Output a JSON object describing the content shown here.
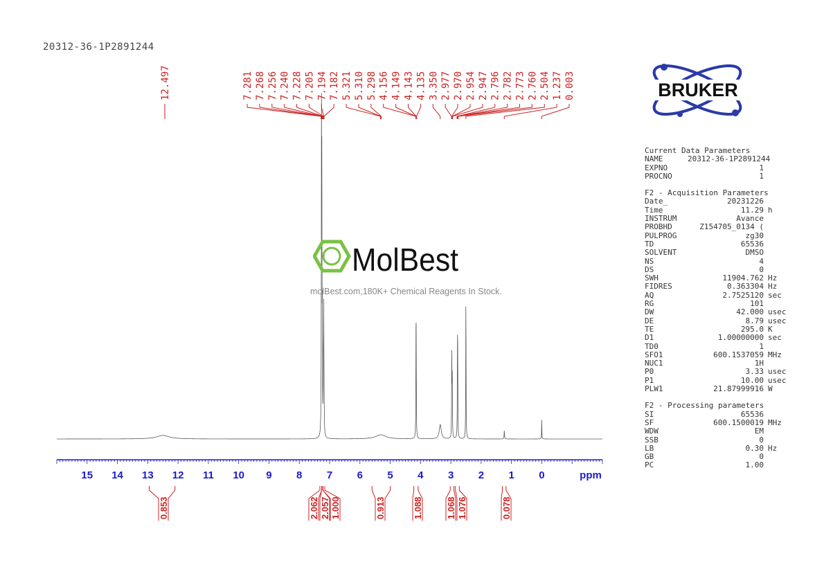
{
  "sample_name": "20312-36-1P2891244",
  "logos": {
    "bruker": "BRUKER",
    "watermark": "MolBest",
    "watermark_sub": "molBest.com,180K+ Chemical Reagents In Stock."
  },
  "chart_data": {
    "type": "line",
    "title": "",
    "xlabel": "ppm",
    "xlim": [
      16,
      -2
    ],
    "x_ticks": [
      15,
      14,
      13,
      12,
      11,
      10,
      9,
      8,
      7,
      6,
      5,
      4,
      3,
      2,
      1,
      0
    ],
    "line_color": "#555555",
    "label_color": "#cc2222",
    "axis_color": "#1a1acc",
    "peaks": [
      {
        "ppm": 12.5,
        "height": 1.2,
        "width": 0.25
      },
      {
        "ppm": 7.268,
        "height": 100,
        "width": 0.006
      },
      {
        "ppm": 7.256,
        "height": 76,
        "width": 0.006
      },
      {
        "ppm": 7.24,
        "height": 35,
        "width": 0.006
      },
      {
        "ppm": 7.205,
        "height": 20,
        "width": 0.006
      },
      {
        "ppm": 7.194,
        "height": 38,
        "width": 0.006
      },
      {
        "ppm": 7.182,
        "height": 12,
        "width": 0.006
      },
      {
        "ppm": 5.31,
        "height": 1.4,
        "width": 0.2
      },
      {
        "ppm": 4.149,
        "height": 31,
        "width": 0.006
      },
      {
        "ppm": 4.143,
        "height": 20,
        "width": 0.006
      },
      {
        "ppm": 3.35,
        "height": 4.8,
        "width": 0.04
      },
      {
        "ppm": 2.97,
        "height": 28.5,
        "width": 0.006
      },
      {
        "ppm": 2.954,
        "height": 22,
        "width": 0.006
      },
      {
        "ppm": 2.782,
        "height": 28.5,
        "width": 0.006
      },
      {
        "ppm": 2.773,
        "height": 22,
        "width": 0.006
      },
      {
        "ppm": 2.504,
        "height": 48,
        "width": 0.006
      },
      {
        "ppm": 1.237,
        "height": 2.8,
        "width": 0.008
      },
      {
        "ppm": 0.003,
        "height": 7,
        "width": 0.005
      }
    ],
    "peak_labels": [
      "12.497",
      "7.281",
      "7.268",
      "7.256",
      "7.240",
      "7.228",
      "7.205",
      "7.194",
      "7.182",
      "5.321",
      "5.310",
      "5.298",
      "4.156",
      "4.149",
      "4.143",
      "4.135",
      "3.350",
      "2.977",
      "2.970",
      "2.954",
      "2.947",
      "2.796",
      "2.782",
      "2.773",
      "2.760",
      "2.504",
      "1.237",
      "0.003"
    ],
    "integrals": [
      {
        "from": 12.95,
        "to": 12.1,
        "value": "0.853"
      },
      {
        "from": 7.32,
        "to": 7.26,
        "value": "2.062"
      },
      {
        "from": 7.26,
        "to": 7.22,
        "value": "2.057"
      },
      {
        "from": 7.22,
        "to": 7.16,
        "value": "1.000"
      },
      {
        "from": 5.6,
        "to": 5.0,
        "value": "0.913"
      },
      {
        "from": 4.22,
        "to": 4.08,
        "value": "1.088"
      },
      {
        "from": 3.02,
        "to": 2.9,
        "value": "1.068"
      },
      {
        "from": 2.85,
        "to": 2.72,
        "value": "1.076"
      },
      {
        "from": 1.3,
        "to": 1.18,
        "value": "0.078"
      }
    ]
  },
  "parameters": {
    "current": {
      "title": "Current Data Parameters",
      "rows": [
        [
          "NAME",
          "20312-36-1P2891244",
          ""
        ],
        [
          "EXPNO",
          "1",
          ""
        ],
        [
          "PROCNO",
          "1",
          ""
        ]
      ]
    },
    "acquisition": {
      "title": "F2 - Acquisition Parameters",
      "rows": [
        [
          "Date_",
          "20231226",
          ""
        ],
        [
          "Time",
          "11.29",
          "h"
        ],
        [
          "INSTRUM",
          "Avance",
          ""
        ],
        [
          "PROBHD",
          "Z154705_0134 (",
          ""
        ],
        [
          "PULPROG",
          "zg30",
          ""
        ],
        [
          "TD",
          "65536",
          ""
        ],
        [
          "SOLVENT",
          "DMSO",
          ""
        ],
        [
          "NS",
          "4",
          ""
        ],
        [
          "DS",
          "0",
          ""
        ],
        [
          "SWH",
          "11904.762",
          "Hz"
        ],
        [
          "FIDRES",
          "0.363304",
          "Hz"
        ],
        [
          "AQ",
          "2.7525120",
          "sec"
        ],
        [
          "RG",
          "101",
          ""
        ],
        [
          "DW",
          "42.000",
          "usec"
        ],
        [
          "DE",
          "8.79",
          "usec"
        ],
        [
          "TE",
          "295.0",
          "K"
        ],
        [
          "D1",
          "1.00000000",
          "sec"
        ],
        [
          "TD0",
          "1",
          ""
        ],
        [
          "SFO1",
          "600.1537059",
          "MHz"
        ],
        [
          "NUC1",
          "1H",
          ""
        ],
        [
          "P0",
          "3.33",
          "usec"
        ],
        [
          "P1",
          "10.00",
          "usec"
        ],
        [
          "PLW1",
          "21.87999916",
          "W"
        ]
      ]
    },
    "processing": {
      "title": "F2 - Processing parameters",
      "rows": [
        [
          "SI",
          "65536",
          ""
        ],
        [
          "SF",
          "600.1500019",
          "MHz"
        ],
        [
          "WDW",
          "EM",
          ""
        ],
        [
          "SSB",
          "0",
          ""
        ],
        [
          "LB",
          "0.30",
          "Hz"
        ],
        [
          "GB",
          "0",
          ""
        ],
        [
          "PC",
          "1.00",
          ""
        ]
      ]
    }
  }
}
